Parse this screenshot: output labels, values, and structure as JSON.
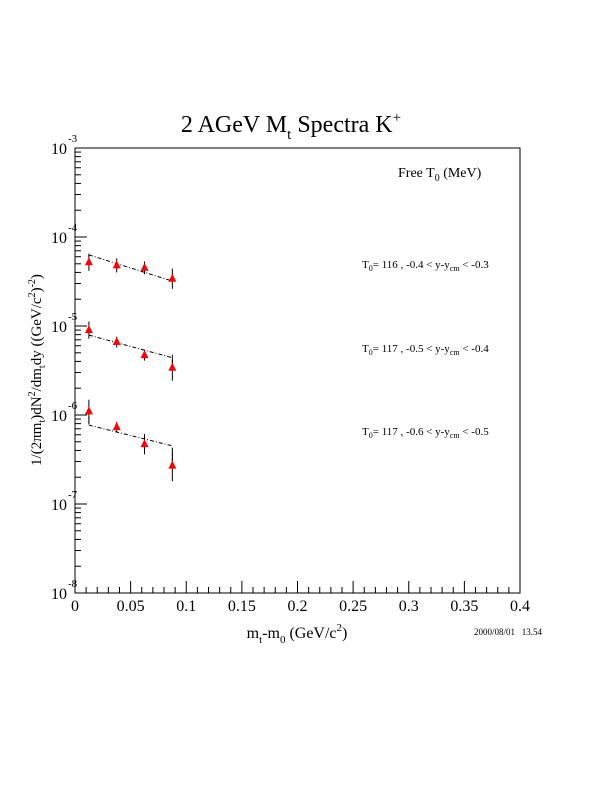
{
  "chart_data": {
    "type": "scatter",
    "title": "2 AGeV M",
    "title_sub": "t",
    "title_rest": " Spectra K",
    "title_sup": "+",
    "xlabel": "m_t-m_0 (GeV/c^2)",
    "xlabel_parts": {
      "a": "m",
      "a_sub": "t",
      "b": "-m",
      "b_sub": "0",
      "c": " (GeV/c",
      "c_sup": "2",
      "d": ")"
    },
    "ylabel": "1/(2πm_t)dN^2/dm_t dy ((GeV/c^2)^-2)",
    "ylabel_parts": {
      "a": "1/(2πm",
      "a_sub": "t",
      "b": ")dN",
      "b_sup": "2",
      "c": "/dm",
      "c_sub": "t",
      "d": "dy ((GeV/c",
      "d_sup": "2",
      "e": ")",
      "e_sup": "-2",
      "f": ")"
    },
    "xlim": [
      0,
      0.4
    ],
    "ylim": [
      1e-08,
      0.001
    ],
    "yscale": "log",
    "x_ticks": [
      "0",
      "0.05",
      "0.1",
      "0.15",
      "0.2",
      "0.25",
      "0.3",
      "0.35",
      "0.4"
    ],
    "x_tick_values": [
      0,
      0.05,
      0.1,
      0.15,
      0.2,
      0.25,
      0.3,
      0.35,
      0.4
    ],
    "y_ticks": [
      {
        "base": "10",
        "exp": "-3",
        "value": 0.001
      },
      {
        "base": "10",
        "exp": "-4",
        "value": 0.0001
      },
      {
        "base": "10",
        "exp": "-5",
        "value": 1e-05
      },
      {
        "base": "10",
        "exp": "-6",
        "value": 1e-06
      },
      {
        "base": "10",
        "exp": "-7",
        "value": 1e-07
      },
      {
        "base": "10",
        "exp": "-8",
        "value": 1e-08
      }
    ],
    "legend_header": {
      "a": "Free T",
      "a_sub": "0",
      "b": " (MeV)"
    },
    "marker_color": "#ff0000",
    "series": [
      {
        "name": "T0 = 116, -0.4 < y-ycm < -0.3",
        "label": {
          "a": "T",
          "a_sub": "0",
          "b": "= 116 , -0.4 < y-y",
          "b_sub": "cm",
          "c": " < -0.3"
        },
        "x": [
          0.0125,
          0.0375,
          0.0625,
          0.0875
        ],
        "y": [
          5.2e-05,
          4.8e-05,
          4.5e-05,
          3.4e-05
        ],
        "yerr_factor": [
          1.25,
          1.2,
          1.18,
          1.3
        ],
        "fit": {
          "x": [
            0.0125,
            0.0875
          ],
          "y": [
            6.3e-05,
            3.2e-05
          ]
        }
      },
      {
        "name": "T0 = 117, -0.5 < y-ycm < -0.4",
        "label": {
          "a": "T",
          "a_sub": "0",
          "b": "= 117 , -0.5 < y-y",
          "b_sub": "cm",
          "c": " < -0.4"
        },
        "x": [
          0.0125,
          0.0375,
          0.0625,
          0.0875
        ],
        "y": [
          9e-06,
          6.6e-06,
          4.7e-06,
          3.4e-06
        ],
        "yerr_factor": [
          1.25,
          1.15,
          1.15,
          1.4
        ],
        "fit": {
          "x": [
            0.0125,
            0.0875
          ],
          "y": [
            7.9e-06,
            4.4e-06
          ]
        }
      },
      {
        "name": "T0 = 117, -0.6 < y-ycm < -0.5",
        "label": {
          "a": "T",
          "a_sub": "0",
          "b": "= 117 , -0.6 < y-y",
          "b_sub": "cm",
          "c": " < -0.5"
        },
        "x": [
          0.0125,
          0.0375,
          0.0625,
          0.0875
        ],
        "y": [
          1.1e-06,
          7.3e-07,
          4.7e-07,
          2.7e-07
        ],
        "yerr_factor": [
          1.35,
          1.15,
          1.3,
          1.5
        ],
        "fit": {
          "x": [
            0.0125,
            0.0875
          ],
          "y": [
            7.7e-07,
            4.5e-07
          ]
        }
      }
    ],
    "timestamp": "2000/08/01   13.54"
  }
}
